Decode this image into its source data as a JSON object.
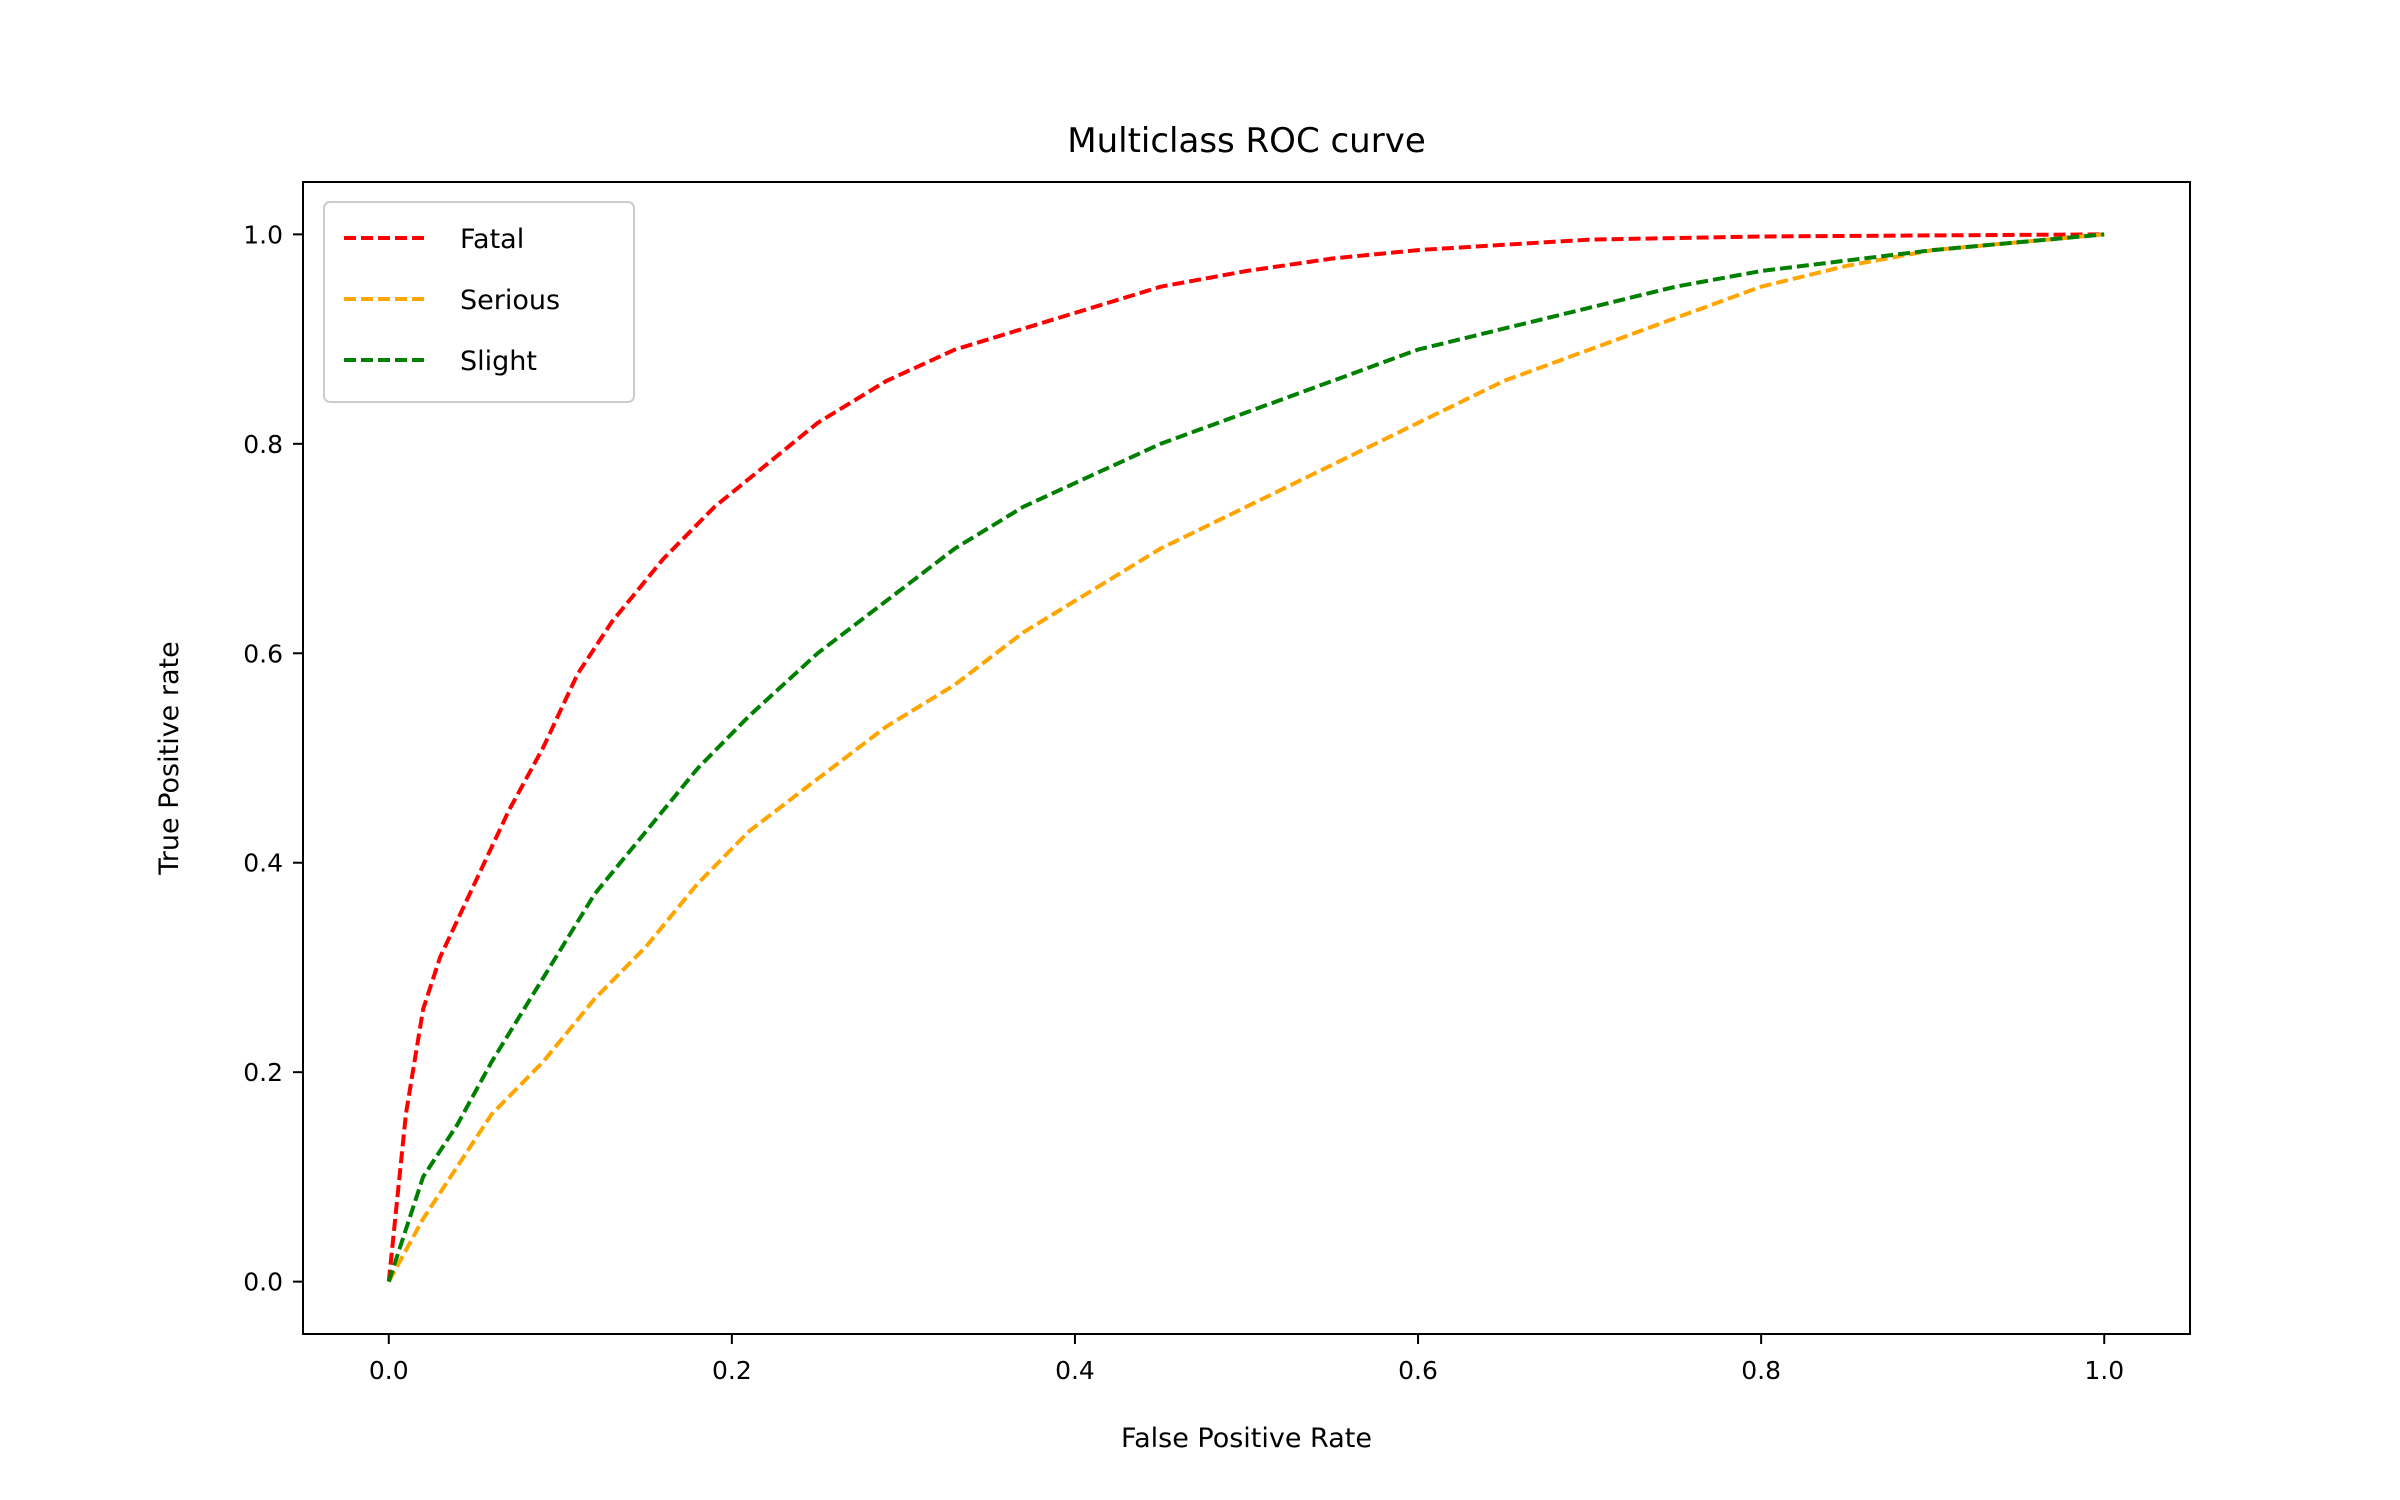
{
  "chart_data": {
    "type": "line",
    "title": "Multiclass ROC curve",
    "xlabel": "False Positive Rate",
    "ylabel": "True Positive rate",
    "xlim": [
      -0.05,
      1.05
    ],
    "ylim": [
      -0.05,
      1.05
    ],
    "xticks": [
      "0.0",
      "0.2",
      "0.4",
      "0.6",
      "0.8",
      "1.0"
    ],
    "yticks": [
      "0.0",
      "0.2",
      "0.4",
      "0.6",
      "0.8",
      "1.0"
    ],
    "grid": false,
    "legend": "upper-left",
    "series": [
      {
        "name": "Fatal",
        "color": "#ff0000",
        "x": [
          0,
          0.01,
          0.02,
          0.03,
          0.05,
          0.07,
          0.09,
          0.11,
          0.13,
          0.16,
          0.19,
          0.22,
          0.25,
          0.29,
          0.33,
          0.37,
          0.41,
          0.45,
          0.5,
          0.55,
          0.6,
          0.65,
          0.7,
          0.8,
          0.9,
          1.0
        ],
        "y": [
          0,
          0.16,
          0.26,
          0.31,
          0.38,
          0.45,
          0.51,
          0.58,
          0.63,
          0.69,
          0.74,
          0.78,
          0.82,
          0.86,
          0.89,
          0.91,
          0.93,
          0.95,
          0.965,
          0.977,
          0.985,
          0.99,
          0.995,
          0.998,
          0.999,
          1.0
        ]
      },
      {
        "name": "Serious",
        "color": "#ffa500",
        "x": [
          0,
          0.02,
          0.04,
          0.06,
          0.09,
          0.12,
          0.15,
          0.18,
          0.21,
          0.25,
          0.29,
          0.33,
          0.37,
          0.41,
          0.45,
          0.5,
          0.55,
          0.6,
          0.65,
          0.7,
          0.75,
          0.8,
          0.85,
          0.9,
          1.0
        ],
        "y": [
          0,
          0.06,
          0.11,
          0.16,
          0.21,
          0.27,
          0.32,
          0.38,
          0.43,
          0.48,
          0.53,
          0.57,
          0.62,
          0.66,
          0.7,
          0.74,
          0.78,
          0.82,
          0.86,
          0.89,
          0.92,
          0.95,
          0.97,
          0.985,
          1.0
        ]
      },
      {
        "name": "Slight",
        "color": "#008000",
        "x": [
          0,
          0.02,
          0.04,
          0.06,
          0.09,
          0.12,
          0.15,
          0.18,
          0.21,
          0.25,
          0.29,
          0.33,
          0.37,
          0.41,
          0.45,
          0.5,
          0.55,
          0.6,
          0.65,
          0.7,
          0.75,
          0.8,
          0.85,
          0.9,
          1.0
        ],
        "y": [
          0,
          0.1,
          0.15,
          0.21,
          0.29,
          0.37,
          0.43,
          0.49,
          0.54,
          0.6,
          0.65,
          0.7,
          0.74,
          0.77,
          0.8,
          0.83,
          0.86,
          0.89,
          0.91,
          0.93,
          0.95,
          0.965,
          0.975,
          0.985,
          1.0
        ]
      }
    ]
  }
}
